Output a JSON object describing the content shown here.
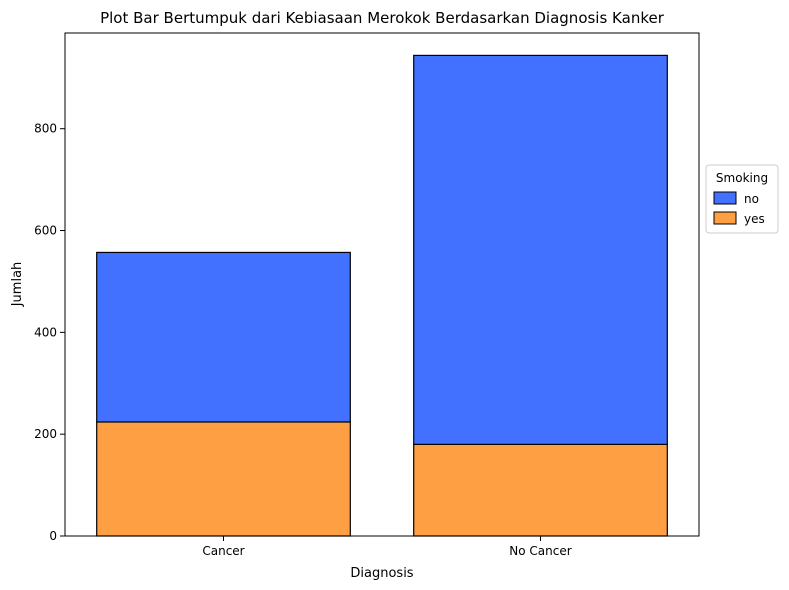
{
  "chart_data": {
    "type": "bar",
    "stacked": true,
    "title": "Plot Bar Bertumpuk dari Kebiasaan Merokok Berdasarkan Diagnosis Kanker",
    "xlabel": "Diagnosis",
    "ylabel": "Jumlah",
    "categories": [
      "Cancer",
      "No Cancer"
    ],
    "series": [
      {
        "name": "yes",
        "values": [
          224,
          180
        ],
        "color": "#ff9f43"
      },
      {
        "name": "no",
        "values": [
          333,
          764
        ],
        "color": "#4271ff"
      }
    ],
    "yticks": [
      0,
      200,
      400,
      600,
      800
    ],
    "ylim": [
      0,
      988
    ],
    "legend": {
      "title": "Smoking",
      "placement": "right-outside",
      "entries": [
        {
          "label": "no",
          "color": "#4271ff"
        },
        {
          "label": "yes",
          "color": "#ff9f43"
        }
      ]
    },
    "grid": false
  }
}
